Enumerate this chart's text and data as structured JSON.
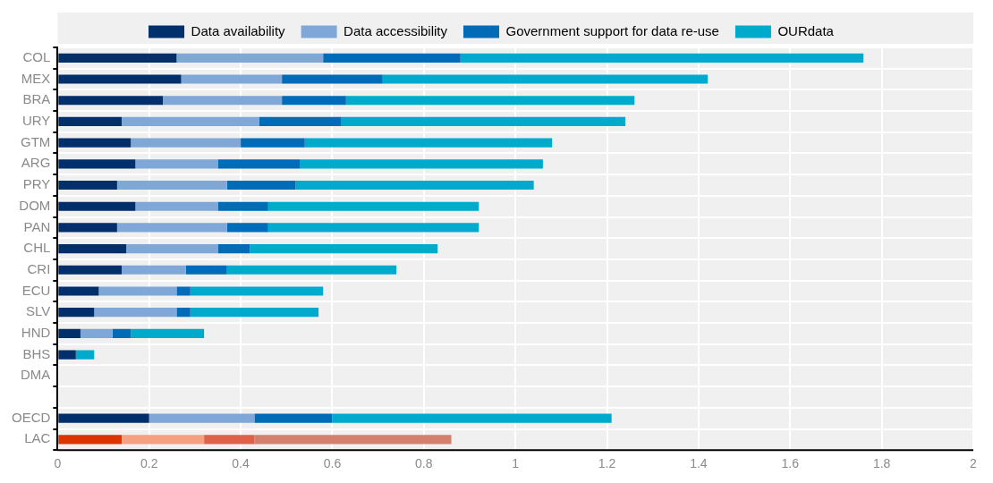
{
  "chart_data": {
    "type": "bar",
    "orientation": "horizontal",
    "stacked": true,
    "categories": [
      "COL",
      "MEX",
      "BRA",
      "URY",
      "GTM",
      "ARG",
      "PRY",
      "DOM",
      "PAN",
      "CHL",
      "CRI",
      "ECU",
      "SLV",
      "HND",
      "BHS",
      "DMA",
      null,
      "OECD",
      "LAC"
    ],
    "series": [
      {
        "name": "Data availability",
        "color": "#002f6c",
        "colors": [
          "#002f6c",
          "#002f6c",
          "#002f6c",
          "#002f6c",
          "#002f6c",
          "#002f6c",
          "#002f6c",
          "#002f6c",
          "#002f6c",
          "#002f6c",
          "#002f6c",
          "#002f6c",
          "#002f6c",
          "#002f6c",
          "#002f6c",
          "#002f6c",
          "#002f6c",
          "#002f6c",
          "#dd3300"
        ],
        "values": [
          0.26,
          0.27,
          0.23,
          0.14,
          0.16,
          0.17,
          0.13,
          0.17,
          0.13,
          0.15,
          0.14,
          0.09,
          0.08,
          0.05,
          0.04,
          null,
          null,
          0.2,
          0.14
        ]
      },
      {
        "name": "Data accessibility",
        "color": "#7fa8d9",
        "colors": [
          "#7fa8d9",
          "#7fa8d9",
          "#7fa8d9",
          "#7fa8d9",
          "#7fa8d9",
          "#7fa8d9",
          "#7fa8d9",
          "#7fa8d9",
          "#7fa8d9",
          "#7fa8d9",
          "#7fa8d9",
          "#7fa8d9",
          "#7fa8d9",
          "#7fa8d9",
          "#7fa8d9",
          "#7fa8d9",
          "#7fa8d9",
          "#7fa8d9",
          "#f4a081"
        ],
        "values": [
          0.32,
          0.22,
          0.26,
          0.3,
          0.24,
          0.18,
          0.24,
          0.18,
          0.24,
          0.2,
          0.14,
          0.17,
          0.18,
          0.07,
          0,
          null,
          null,
          0.23,
          0.18
        ]
      },
      {
        "name": "Government support for data re-use",
        "color": "#006bb6",
        "colors": [
          "#006bb6",
          "#006bb6",
          "#006bb6",
          "#006bb6",
          "#006bb6",
          "#006bb6",
          "#006bb6",
          "#006bb6",
          "#006bb6",
          "#006bb6",
          "#006bb6",
          "#006bb6",
          "#006bb6",
          "#006bb6",
          "#006bb6",
          "#006bb6",
          "#006bb6",
          "#006bb6",
          "#e0614a"
        ],
        "values": [
          0.3,
          0.22,
          0.14,
          0.18,
          0.14,
          0.18,
          0.15,
          0.11,
          0.09,
          0.07,
          0.09,
          0.03,
          0.03,
          0.04,
          0,
          null,
          null,
          0.17,
          0.11
        ]
      },
      {
        "name": "OURdata",
        "color": "#00aacc",
        "colors": [
          "#00aacc",
          "#00aacc",
          "#00aacc",
          "#00aacc",
          "#00aacc",
          "#00aacc",
          "#00aacc",
          "#00aacc",
          "#00aacc",
          "#00aacc",
          "#00aacc",
          "#00aacc",
          "#00aacc",
          "#00aacc",
          "#00aacc",
          "#00aacc",
          "#00aacc",
          "#00aacc",
          "#d4806f"
        ],
        "values": [
          0.88,
          0.71,
          0.63,
          0.62,
          0.54,
          0.53,
          0.52,
          0.46,
          0.46,
          0.41,
          0.37,
          0.29,
          0.28,
          0.16,
          0.04,
          null,
          null,
          0.61,
          0.43
        ]
      }
    ],
    "xlim": [
      0,
      2
    ],
    "xticks": [
      0,
      0.2,
      0.4,
      0.6,
      0.8,
      1,
      1.2,
      1.4,
      1.6,
      1.8,
      2
    ],
    "grid": true,
    "legend": "top"
  }
}
